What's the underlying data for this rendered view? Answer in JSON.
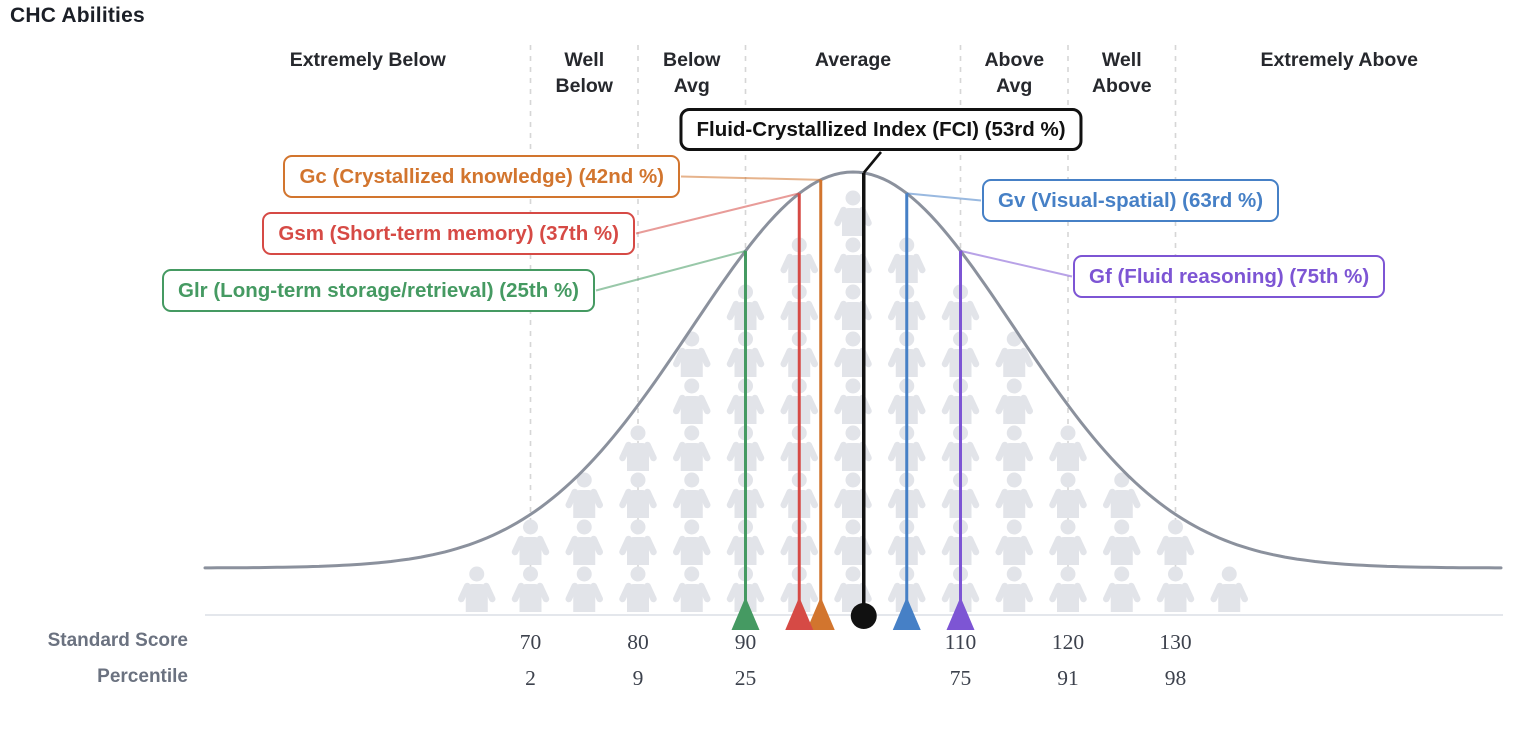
{
  "title": "CHC Abilities",
  "chart_data": {
    "type": "bell-curve",
    "title": "CHC Abilities",
    "distribution": {
      "mean": 100,
      "sd": 15,
      "curve_shape": "normal"
    },
    "regions": [
      {
        "label": "Extremely Below",
        "lines": [
          "Extremely Below"
        ]
      },
      {
        "label": "Well Below",
        "lines": [
          "Well",
          "Below"
        ]
      },
      {
        "label": "Below Avg",
        "lines": [
          "Below",
          "Avg"
        ]
      },
      {
        "label": "Average",
        "lines": [
          "Average"
        ]
      },
      {
        "label": "Above Avg",
        "lines": [
          "Above",
          "Avg"
        ]
      },
      {
        "label": "Well Above",
        "lines": [
          "Well",
          "Above"
        ]
      },
      {
        "label": "Extremely Above",
        "lines": [
          "Extremely Above"
        ]
      }
    ],
    "axis": {
      "score_label": "Standard Score",
      "percentile_label": "Percentile",
      "ticks": [
        {
          "score": 70,
          "percentile": 2
        },
        {
          "score": 80,
          "percentile": 9
        },
        {
          "score": 90,
          "percentile": 25
        },
        {
          "score": 110,
          "percentile": 75
        },
        {
          "score": 120,
          "percentile": 91
        },
        {
          "score": 130,
          "percentile": 98
        }
      ]
    },
    "abilities": [
      {
        "code": "FCI",
        "label": "Fluid-Crystallized Index (FCI) (53rd %)",
        "percentile": 53,
        "score": 101,
        "color": "#111111",
        "marker": "circle"
      },
      {
        "code": "Gc",
        "label": "Gc (Crystallized knowledge) (42nd %)",
        "percentile": 42,
        "score": 97,
        "color": "#d2752e",
        "marker": "triangle"
      },
      {
        "code": "Gsm",
        "label": "Gsm (Short-term memory) (37th %)",
        "percentile": 37,
        "score": 95,
        "color": "#d64a45",
        "marker": "triangle"
      },
      {
        "code": "Glr",
        "label": "Glr (Long-term storage/retrieval) (25th %)",
        "percentile": 25,
        "score": 90,
        "color": "#459a62",
        "marker": "triangle"
      },
      {
        "code": "Gv",
        "label": "Gv (Visual-spatial) (63rd %)",
        "percentile": 63,
        "score": 105,
        "color": "#4680c6",
        "marker": "triangle"
      },
      {
        "code": "Gf",
        "label": "Gf (Fluid reasoning) (75th %)",
        "percentile": 75,
        "score": 110,
        "color": "#7d55d4",
        "marker": "triangle"
      }
    ],
    "colors": {
      "curve": "#8b919d",
      "person_icon": "#e2e4e9",
      "gridline": "#d6d6d6",
      "axis_line": "#e4e7ec",
      "region_label_text": "#26282d",
      "axis_row_label_text": "#6b7280",
      "tick_text": "#3d424d"
    },
    "legend_position": "callouts",
    "grid": "dashed-vertical-at-score-boundaries"
  }
}
